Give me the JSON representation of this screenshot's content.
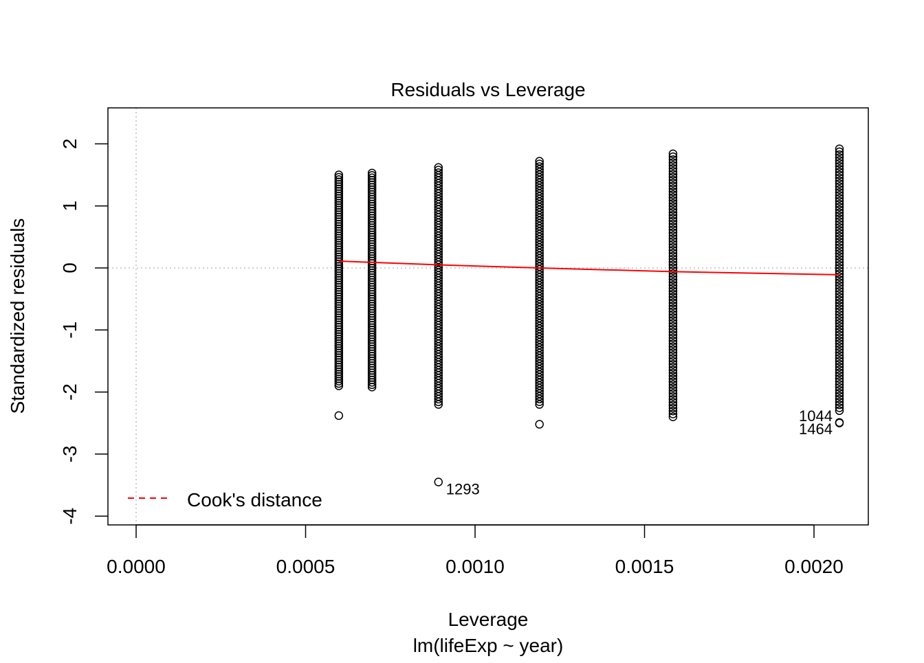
{
  "chart_data": {
    "type": "scatter",
    "title": "Residuals vs Leverage",
    "xlabel": "Leverage",
    "subtitle": "lm(lifeExp ~ year)",
    "ylabel": "Standardized residuals",
    "xlim": [
      -8e-05,
      0.00213
    ],
    "ylim": [
      -4.15,
      2.55
    ],
    "xticks": [
      0,
      0.0005,
      0.001,
      0.0015,
      0.002
    ],
    "xtick_labels": [
      "0.0000",
      "0.0005",
      "0.0010",
      "0.0015",
      "0.0020"
    ],
    "yticks": [
      -4,
      -3,
      -2,
      -1,
      0,
      1,
      2
    ],
    "ytick_labels": [
      "-4",
      "-3",
      "-2",
      "-1",
      "0",
      "1",
      "2"
    ],
    "reference_lines": {
      "x": 0,
      "y": 0,
      "style": "dotted",
      "color": "#bebebe"
    },
    "columns": [
      {
        "leverage": 0.000598,
        "min": -1.9,
        "max": 1.5
      },
      {
        "leverage": 0.000696,
        "min": -1.92,
        "max": 1.53
      },
      {
        "leverage": 0.000892,
        "min": -2.2,
        "max": 1.62
      },
      {
        "leverage": 0.00119,
        "min": -2.2,
        "max": 1.72
      },
      {
        "leverage": 0.001584,
        "min": -2.4,
        "max": 1.84
      },
      {
        "leverage": 0.002075,
        "min": -2.3,
        "max": 1.92
      }
    ],
    "outliers": [
      {
        "leverage": 0.000598,
        "residual": -2.38
      },
      {
        "leverage": 0.00119,
        "residual": -2.52
      },
      {
        "leverage": 0.000892,
        "residual": -3.45,
        "label": "1293"
      },
      {
        "leverage": 0.002075,
        "residual": -2.49,
        "label": "1044"
      },
      {
        "leverage": 0.002075,
        "residual": -2.5,
        "label": "1464"
      }
    ],
    "smooth_line": {
      "color": "#ff0000",
      "x": [
        0.000598,
        0.000696,
        0.000892,
        0.00119,
        0.001584,
        0.002075
      ],
      "y": [
        0.11,
        0.09,
        0.05,
        0.0,
        -0.06,
        -0.11
      ]
    },
    "legend": {
      "position": "bottom-left",
      "entries": [
        {
          "label": "Cook's distance",
          "color": "#ff0000",
          "style": "dashed"
        }
      ]
    }
  }
}
